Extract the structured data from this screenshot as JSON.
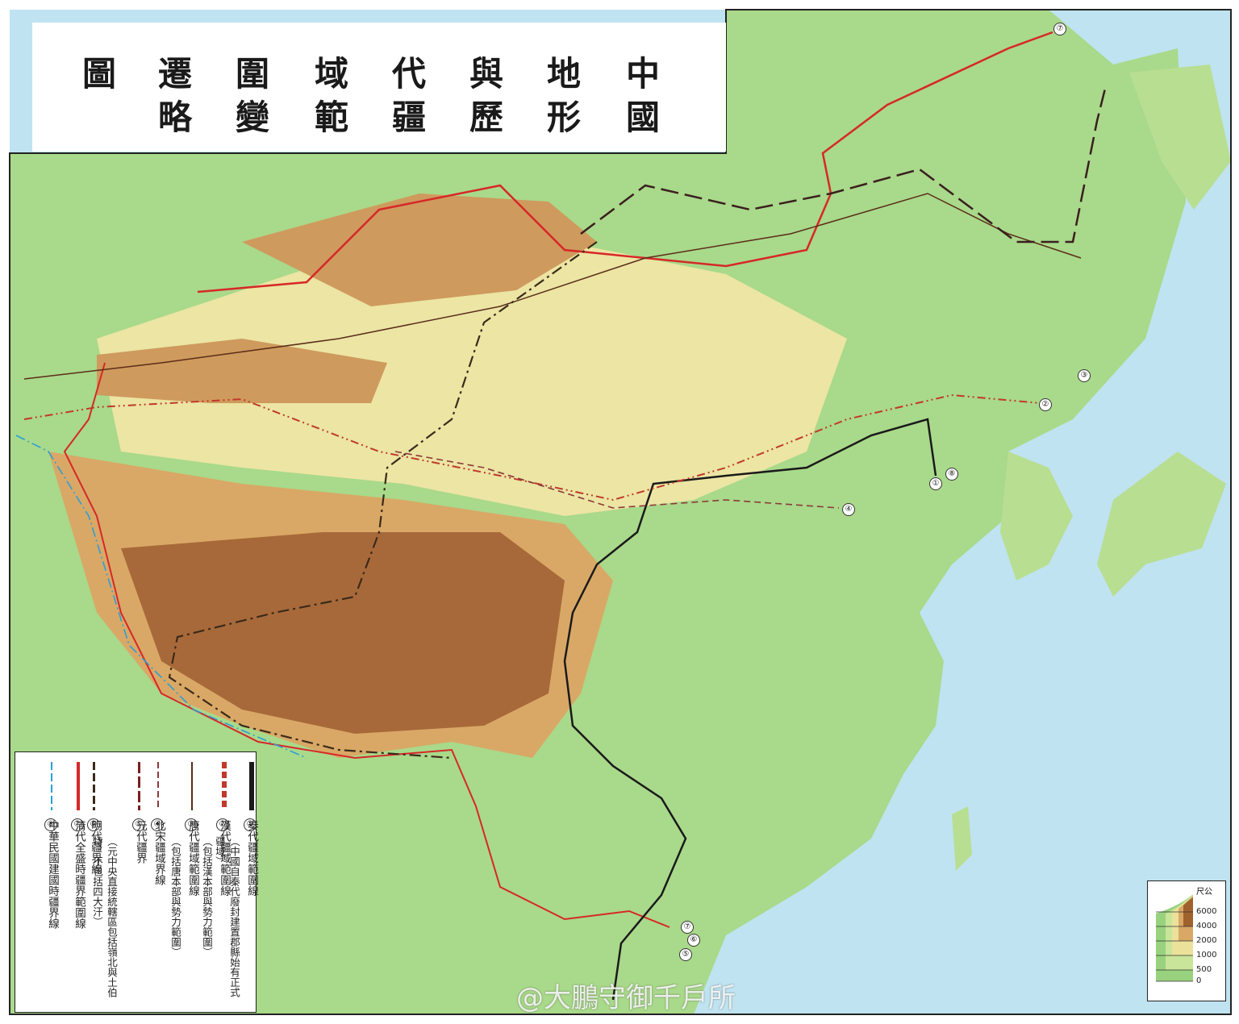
{
  "title": {
    "line1": [
      "圖",
      "遷",
      "圍",
      "域",
      "代",
      "與",
      "地",
      "中"
    ],
    "line2": [
      "略",
      "變",
      "範",
      "疆",
      "歷",
      "形",
      "國"
    ]
  },
  "legend": [
    {
      "num": "①",
      "label": "秦代疆域範圍線",
      "note": "（中國自秦代廢封建置郡縣始有正式疆域）",
      "color": "#1a1a1a",
      "style": "solid"
    },
    {
      "num": "②",
      "label": "漢代疆域範圍線",
      "note": "（包括漢本部與勢力範圍）",
      "color": "#c0392b",
      "style": "dash-dot-dot"
    },
    {
      "num": "③",
      "label": "唐代疆域範圍線",
      "note": "（包括唐本部與勢力範圍）",
      "color": "#5a2d1a",
      "style": "solid"
    },
    {
      "num": "④",
      "label": "北宋疆域界線",
      "note": "",
      "color": "#8b3a3a",
      "style": "dash"
    },
    {
      "num": "⑤",
      "label": "元代疆界",
      "note": "（元中央直接統轄區包括嶺北與土伯特，不包括四大汗）",
      "color": "#7a1f1f",
      "style": "long-dash"
    },
    {
      "num": "⑥",
      "label": "明代疆界線",
      "note": "",
      "color": "#3a2a1a",
      "style": "dash-dot"
    },
    {
      "num": "⑦",
      "label": "清代全盛時疆界範圍線",
      "note": "",
      "color": "#d62828",
      "style": "solid"
    },
    {
      "num": "⑧",
      "label": "中華民國建國時疆界線",
      "note": "",
      "color": "#2b9fd8",
      "style": "dash-dot"
    }
  ],
  "scale": {
    "unit": "尺公",
    "levels": [
      {
        "label": "6000",
        "color": "#ffffff"
      },
      {
        "label": "4000",
        "color": "#a0622d"
      },
      {
        "label": "2000",
        "color": "#d9a866"
      },
      {
        "label": "1000",
        "color": "#ece19a"
      },
      {
        "label": "500",
        "color": "#c9e59a"
      },
      {
        "label": "0",
        "color": "#98d27e"
      }
    ]
  },
  "route_markers": [
    "①",
    "②",
    "③",
    "④",
    "⑤",
    "⑥",
    "⑦",
    "⑧"
  ],
  "watermark": "@大鵬守御千戶所"
}
